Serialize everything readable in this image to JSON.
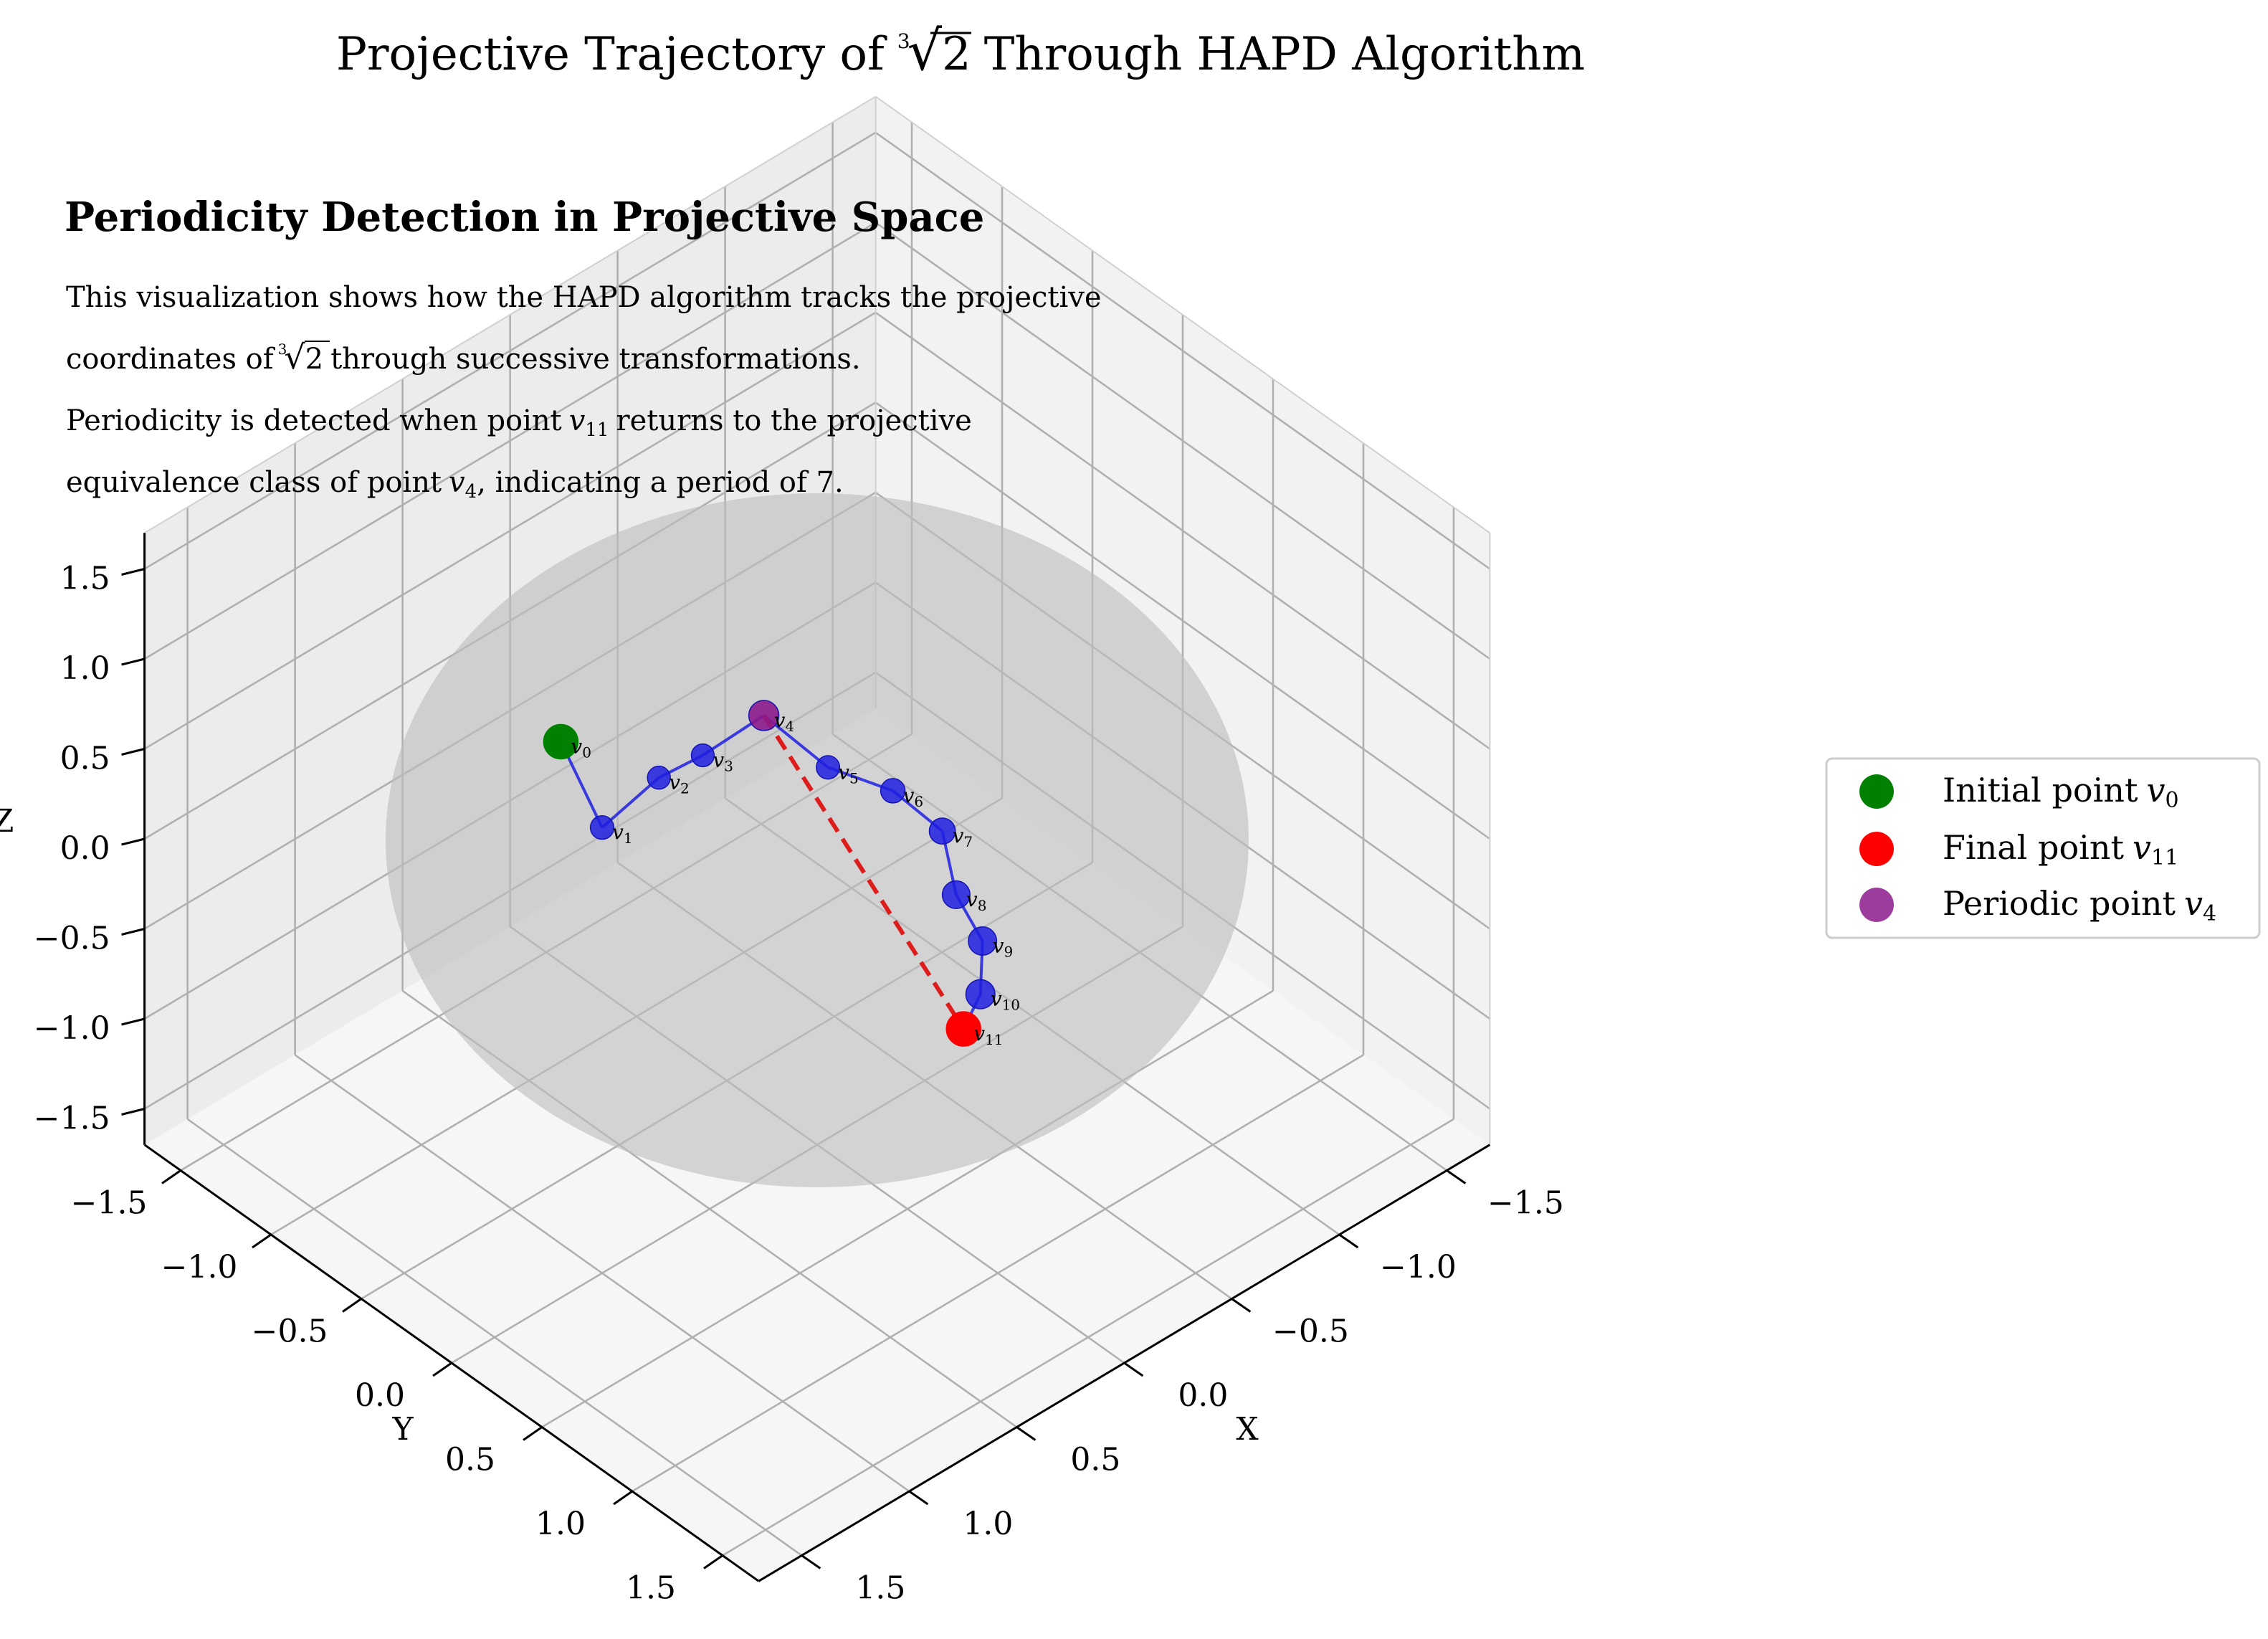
{
  "chart_data": {
    "type": "scatter3d",
    "title_pre": "Projective Trajectory of",
    "title_radical": "2",
    "title_radical_index": "3",
    "title_post": "Through HAPD Algorithm",
    "annotation": {
      "heading": "Periodicity Detection in Projective Space",
      "line1": "This visualization shows how the HAPD algorithm tracks the projective",
      "line2_pre": "coordinates of",
      "line2_radical": "2",
      "line2_radical_index": "3",
      "line2_post": "through successive transformations.",
      "line3_pre": "Periodicity is detected when point",
      "line3_var": "v",
      "line3_sub": "11",
      "line3_post": "returns to the projective",
      "line4_pre": "equivalence class of point",
      "line4_var": "v",
      "line4_sub": "4",
      "line4_post": ", indicating a period of 7."
    },
    "axes": {
      "xlabel": "X",
      "ylabel": "Y",
      "zlabel": "Z",
      "xlim": [
        -1.7,
        1.7
      ],
      "ylim": [
        -1.7,
        1.7
      ],
      "zlim": [
        -1.7,
        1.7
      ],
      "ticks": [
        -1.5,
        -1.0,
        -0.5,
        0.0,
        0.5,
        1.0,
        1.5
      ],
      "tick_labels": [
        "−1.5",
        "−1.0",
        "−0.5",
        "0.0",
        "0.5",
        "1.0",
        "1.5"
      ],
      "grid": true
    },
    "sphere": {
      "radius": 1.0,
      "color": "#bdbdbd"
    },
    "trajectory": {
      "color": "#1f1fe0",
      "points": [
        {
          "label": "v",
          "sub": "0",
          "x": 0.52,
          "y": -0.8,
          "z": 0.34
        },
        {
          "label": "v",
          "sub": "1",
          "x": 0.58,
          "y": -0.5,
          "z": 0.12
        },
        {
          "label": "v",
          "sub": "2",
          "x": 0.4,
          "y": -0.4,
          "z": 0.34
        },
        {
          "label": "v",
          "sub": "3",
          "x": 0.28,
          "y": -0.3,
          "z": 0.45
        },
        {
          "label": "v",
          "sub": "4",
          "x": 0.08,
          "y": -0.2,
          "z": 0.6
        },
        {
          "label": "v",
          "sub": "5",
          "x": 0.0,
          "y": 0.06,
          "z": 0.44
        },
        {
          "label": "v",
          "sub": "6",
          "x": -0.1,
          "y": 0.3,
          "z": 0.41
        },
        {
          "label": "v",
          "sub": "7",
          "x": -0.12,
          "y": 0.55,
          "z": 0.35
        },
        {
          "label": "v",
          "sub": "8",
          "x": -0.05,
          "y": 0.71,
          "z": 0.16
        },
        {
          "label": "v",
          "sub": "9",
          "x": -0.08,
          "y": 0.82,
          "z": -0.04
        },
        {
          "label": "v",
          "sub": "10",
          "x": -0.02,
          "y": 0.88,
          "z": -0.25
        },
        {
          "label": "v",
          "sub": "11",
          "x": 0.05,
          "y": 0.87,
          "z": -0.4
        }
      ]
    },
    "period_link": {
      "from": "v4",
      "to": "v11",
      "color": "#dd1c1c",
      "style": "dashed"
    },
    "markers": {
      "initial_color": "#008000",
      "final_color": "#ff0000",
      "periodic_color": "#8b1a8b"
    },
    "legend": {
      "position": "right",
      "entries": [
        {
          "text": "Initial point",
          "var": "v",
          "sub": "0",
          "color": "#008000"
        },
        {
          "text": "Final point",
          "var": "v",
          "sub": "11",
          "color": "#ff0000"
        },
        {
          "text": "Periodic point",
          "var": "v",
          "sub": "4",
          "color": "#8b1a8b"
        }
      ]
    }
  }
}
